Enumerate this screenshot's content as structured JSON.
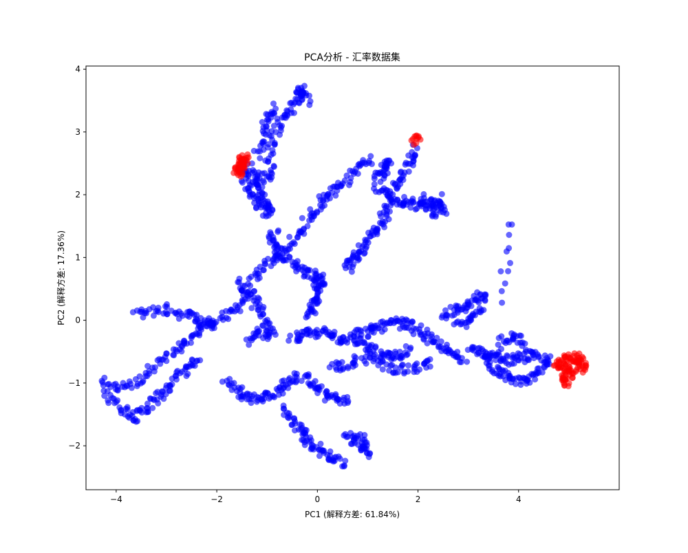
{
  "chart_data": {
    "type": "scatter",
    "title": "PCA分析 - 汇率数据集",
    "xlabel": "PC1 (解释方差: 61.84%)",
    "ylabel": "PC2 (解释方差: 17.36%)",
    "xlim": [
      -4.6,
      6.0
    ],
    "ylim": [
      -2.7,
      4.05
    ],
    "xticks": [
      -4,
      -2,
      0,
      2,
      4
    ],
    "yticks": [
      -2,
      -1,
      0,
      1,
      2,
      3,
      4
    ],
    "grid": false,
    "colors": {
      "normal": "#0000ff",
      "anomaly": "#ff0000"
    },
    "series": [
      {
        "key": "normal",
        "color": "#0000ff",
        "segments": [
          [
            [
              -4.2,
              -1.1
            ],
            [
              -3.9,
              -1.05
            ],
            [
              -3.6,
              -1.0
            ],
            [
              -3.3,
              -0.75
            ],
            [
              -3.0,
              -0.6
            ],
            [
              -2.7,
              -0.45
            ],
            [
              -2.5,
              -0.3
            ],
            [
              -2.3,
              -0.1
            ],
            [
              -2.0,
              0.0
            ],
            [
              -1.7,
              0.1
            ],
            [
              -1.5,
              0.3
            ],
            [
              -1.3,
              0.6
            ],
            [
              -1.1,
              0.8
            ],
            [
              -0.85,
              1.0
            ],
            [
              -0.6,
              1.15
            ],
            [
              -0.35,
              1.35
            ],
            [
              -0.2,
              1.6
            ],
            [
              0.0,
              1.8
            ],
            [
              0.2,
              2.0
            ],
            [
              0.4,
              2.1
            ],
            [
              0.6,
              2.25
            ],
            [
              0.85,
              2.45
            ],
            [
              1.0,
              2.55
            ]
          ],
          [
            [
              -4.25,
              -0.95
            ],
            [
              -4.1,
              -1.3
            ],
            [
              -3.8,
              -1.45
            ],
            [
              -3.6,
              -1.55
            ],
            [
              -3.4,
              -1.4
            ],
            [
              -3.2,
              -1.25
            ],
            [
              -3.0,
              -1.1
            ],
            [
              -2.8,
              -0.9
            ],
            [
              -2.6,
              -0.75
            ],
            [
              -2.4,
              -0.65
            ]
          ],
          [
            [
              -3.6,
              0.1
            ],
            [
              -3.3,
              0.15
            ],
            [
              -3.0,
              0.18
            ],
            [
              -2.7,
              0.1
            ],
            [
              -2.4,
              0.05
            ],
            [
              -2.2,
              -0.05
            ],
            [
              -2.0,
              -0.1
            ]
          ],
          [
            [
              -1.8,
              -0.95
            ],
            [
              -1.6,
              -1.1
            ],
            [
              -1.4,
              -1.2
            ],
            [
              -1.2,
              -1.25
            ],
            [
              -1.0,
              -1.2
            ],
            [
              -0.8,
              -1.15
            ],
            [
              -0.6,
              -1.0
            ],
            [
              -0.4,
              -0.9
            ],
            [
              -0.2,
              -0.95
            ],
            [
              0.0,
              -1.1
            ],
            [
              0.2,
              -1.2
            ],
            [
              0.4,
              -1.25
            ],
            [
              0.6,
              -1.3
            ]
          ],
          [
            [
              -0.7,
              -1.4
            ],
            [
              -0.5,
              -1.6
            ],
            [
              -0.3,
              -1.75
            ],
            [
              -0.2,
              -1.9
            ],
            [
              -0.1,
              -2.0
            ],
            [
              0.1,
              -2.1
            ],
            [
              0.3,
              -2.2
            ],
            [
              0.5,
              -2.3
            ]
          ],
          [
            [
              0.6,
              -1.8
            ],
            [
              0.75,
              -1.9
            ],
            [
              0.9,
              -2.0
            ],
            [
              1.0,
              -2.1
            ],
            [
              0.85,
              -1.85
            ]
          ],
          [
            [
              -1.0,
              2.5
            ],
            [
              -0.9,
              2.85
            ],
            [
              -0.75,
              3.1
            ],
            [
              -0.6,
              3.3
            ],
            [
              -0.45,
              3.45
            ],
            [
              -0.35,
              3.6
            ],
            [
              -0.3,
              3.7
            ],
            [
              -0.2,
              3.5
            ]
          ],
          [
            [
              -1.2,
              2.65
            ],
            [
              -1.1,
              2.95
            ],
            [
              -1.0,
              3.2
            ],
            [
              -0.9,
              3.4
            ]
          ],
          [
            [
              -1.4,
              2.5
            ],
            [
              -1.3,
              2.3
            ],
            [
              -1.2,
              2.15
            ],
            [
              -1.1,
              2.0
            ],
            [
              -1.0,
              1.85
            ],
            [
              -0.95,
              1.7
            ],
            [
              -1.15,
              1.85
            ],
            [
              -1.35,
              2.05
            ],
            [
              -1.45,
              2.3
            ],
            [
              -1.0,
              2.25
            ],
            [
              -0.9,
              2.4
            ]
          ],
          [
            [
              -0.85,
              1.4
            ],
            [
              -0.9,
              1.25
            ],
            [
              -0.75,
              1.1
            ],
            [
              -0.6,
              0.95
            ],
            [
              -0.4,
              0.85
            ],
            [
              -0.2,
              0.75
            ],
            [
              0.0,
              0.7
            ],
            [
              0.15,
              0.6
            ]
          ],
          [
            [
              -1.55,
              0.6
            ],
            [
              -1.4,
              0.45
            ],
            [
              -1.25,
              0.3
            ],
            [
              -1.1,
              0.1
            ],
            [
              -1.0,
              -0.1
            ],
            [
              -0.9,
              -0.3
            ],
            [
              -1.2,
              -0.15
            ],
            [
              -1.35,
              -0.35
            ]
          ],
          [
            [
              -0.5,
              -0.3
            ],
            [
              -0.3,
              -0.25
            ],
            [
              -0.1,
              -0.2
            ],
            [
              0.1,
              -0.2
            ],
            [
              0.3,
              -0.25
            ],
            [
              0.5,
              -0.3
            ],
            [
              0.7,
              -0.25
            ],
            [
              0.9,
              -0.2
            ],
            [
              1.1,
              -0.15
            ],
            [
              1.3,
              -0.1
            ],
            [
              1.5,
              -0.05
            ],
            [
              1.7,
              -0.05
            ],
            [
              1.9,
              -0.1
            ],
            [
              2.1,
              -0.2
            ],
            [
              2.3,
              -0.35
            ],
            [
              2.5,
              -0.45
            ],
            [
              2.7,
              -0.55
            ],
            [
              2.9,
              -0.6
            ]
          ],
          [
            [
              0.3,
              -0.75
            ],
            [
              0.5,
              -0.7
            ],
            [
              0.8,
              -0.65
            ],
            [
              1.1,
              -0.6
            ],
            [
              1.4,
              -0.75
            ],
            [
              1.7,
              -0.8
            ],
            [
              2.0,
              -0.75
            ],
            [
              2.3,
              -0.7
            ]
          ],
          [
            [
              0.8,
              -0.35
            ],
            [
              1.0,
              -0.45
            ],
            [
              1.2,
              -0.5
            ],
            [
              1.4,
              -0.6
            ],
            [
              1.6,
              -0.55
            ],
            [
              1.8,
              -0.45
            ]
          ],
          [
            [
              2.5,
              0.1
            ],
            [
              2.7,
              0.15
            ],
            [
              2.9,
              0.2
            ],
            [
              3.1,
              0.3
            ],
            [
              3.3,
              0.4
            ],
            [
              3.2,
              0.1
            ],
            [
              3.0,
              0.0
            ],
            [
              2.8,
              -0.1
            ]
          ],
          [
            [
              3.0,
              -0.45
            ],
            [
              3.2,
              -0.5
            ],
            [
              3.4,
              -0.55
            ],
            [
              3.6,
              -0.6
            ],
            [
              3.8,
              -0.65
            ],
            [
              4.0,
              -0.6
            ],
            [
              4.2,
              -0.55
            ],
            [
              4.4,
              -0.6
            ],
            [
              4.6,
              -0.65
            ],
            [
              4.4,
              -0.85
            ],
            [
              4.2,
              -0.9
            ],
            [
              4.0,
              -0.95
            ],
            [
              3.8,
              -0.9
            ],
            [
              3.6,
              -0.85
            ],
            [
              3.4,
              -0.75
            ],
            [
              3.7,
              -0.3
            ],
            [
              3.9,
              -0.25
            ],
            [
              4.1,
              -0.35
            ]
          ],
          [
            [
              1.5,
              1.85
            ],
            [
              1.7,
              1.9
            ],
            [
              1.9,
              1.85
            ],
            [
              2.1,
              1.8
            ],
            [
              2.3,
              1.85
            ],
            [
              2.4,
              1.95
            ],
            [
              2.5,
              1.75
            ],
            [
              2.3,
              1.7
            ],
            [
              2.1,
              1.95
            ]
          ],
          [
            [
              0.6,
              0.8
            ],
            [
              0.7,
              0.95
            ],
            [
              0.85,
              1.05
            ],
            [
              0.95,
              1.2
            ],
            [
              1.1,
              1.35
            ],
            [
              1.25,
              1.5
            ],
            [
              1.35,
              1.7
            ],
            [
              1.45,
              1.9
            ],
            [
              1.55,
              2.1
            ],
            [
              1.7,
              2.3
            ],
            [
              1.85,
              2.55
            ],
            [
              1.95,
              2.75
            ]
          ],
          [
            [
              -0.15,
              0.05
            ],
            [
              -0.1,
              0.2
            ],
            [
              -0.05,
              0.35
            ],
            [
              0.0,
              0.5
            ],
            [
              0.05,
              0.65
            ]
          ],
          [
            [
              1.2,
              2.3
            ],
            [
              1.3,
              2.45
            ],
            [
              1.45,
              2.5
            ],
            [
              1.2,
              2.15
            ],
            [
              1.35,
              2.0
            ]
          ],
          [
            [
              3.9,
              1.58
            ],
            [
              3.6,
              0.35
            ]
          ]
        ]
      },
      {
        "key": "anomaly",
        "color": "#ff0000",
        "segments": [
          [
            [
              -1.6,
              2.45
            ],
            [
              -1.55,
              2.35
            ],
            [
              -1.5,
              2.5
            ],
            [
              -1.45,
              2.6
            ],
            [
              -1.55,
              2.55
            ],
            [
              -1.5,
              2.3
            ]
          ],
          [
            [
              2.0,
              2.87
            ],
            [
              1.93,
              2.85
            ]
          ],
          [
            [
              4.75,
              -0.75
            ],
            [
              4.85,
              -0.7
            ],
            [
              4.95,
              -0.65
            ],
            [
              5.05,
              -0.6
            ],
            [
              5.15,
              -0.6
            ],
            [
              5.25,
              -0.65
            ],
            [
              5.3,
              -0.75
            ],
            [
              5.1,
              -0.85
            ],
            [
              4.95,
              -0.9
            ],
            [
              4.9,
              -1.0
            ],
            [
              5.0,
              -0.7
            ]
          ]
        ]
      }
    ]
  }
}
